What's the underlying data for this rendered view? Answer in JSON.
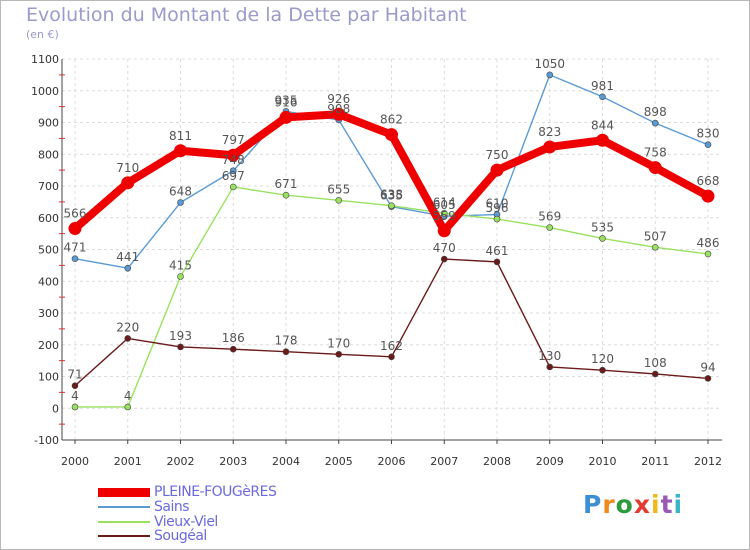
{
  "chart_data": {
    "type": "line",
    "title": "Evolution du Montant de la Dette par Habitant",
    "unit_label": "(en €)",
    "x": [
      "2000",
      "2001",
      "2002",
      "2003",
      "2004",
      "2005",
      "2006",
      "2007",
      "2008",
      "2009",
      "2010",
      "2011",
      "2012"
    ],
    "ylim": [
      -100,
      1100
    ],
    "y_ticks": [
      -100,
      0,
      100,
      200,
      300,
      400,
      500,
      600,
      700,
      800,
      900,
      1000,
      1100
    ],
    "grid": true,
    "legend_position": "bottom-left",
    "series": [
      {
        "name": "Sains",
        "color": "#5b9bd5",
        "values": [
          471,
          441,
          648,
          748,
          935,
          908,
          635,
          605,
          610,
          1050,
          981,
          898,
          830
        ]
      },
      {
        "name": "Vieux-Viel",
        "color": "#99e15f",
        "values": [
          4,
          4,
          415,
          697,
          671,
          655,
          638,
          614,
          596,
          569,
          535,
          507,
          486
        ]
      },
      {
        "name": "Sougéal",
        "color": "#6b1a1a",
        "values": [
          71,
          220,
          193,
          186,
          178,
          170,
          162,
          470,
          461,
          130,
          120,
          108,
          94
        ]
      },
      {
        "name": "PLEINE-FOUGèRES",
        "color": "#ee0000",
        "values": [
          566,
          710,
          811,
          797,
          916,
          926,
          862,
          559,
          750,
          823,
          844,
          758,
          668
        ]
      }
    ],
    "legend_order": [
      "PLEINE-FOUGèRES",
      "Sains",
      "Vieux-Viel",
      "Sougéal"
    ]
  },
  "brand": {
    "text": "Proxiti"
  }
}
